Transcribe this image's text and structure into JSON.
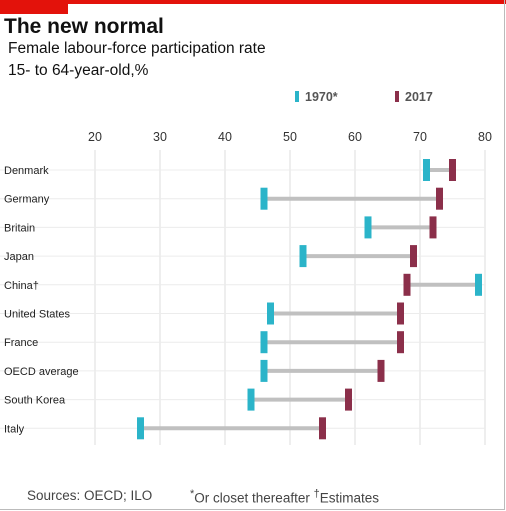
{
  "header": {
    "title": "The new normal",
    "subtitle": "Female labour-force participation rate",
    "subtitle2": "15- to 64-year-old,%"
  },
  "footer": {
    "source": "Sources: OECD; ILO",
    "note_star": "*",
    "note_star_text": "Or closet thereafter",
    "note_dagger": "†",
    "note_dagger_text": "Estimates"
  },
  "colors": {
    "accent": "#e3120b",
    "series_1970": "#2bb4c9",
    "series_2017": "#8b2f4a",
    "connector": "#c0c0c0",
    "grid": "#dddddd"
  },
  "chart_data": {
    "type": "dumbbell",
    "xlim": [
      20,
      80
    ],
    "xticks": [
      20,
      30,
      40,
      50,
      60,
      70,
      80
    ],
    "grid": true,
    "legend": [
      {
        "name": "1970*",
        "color": "#2bb4c9"
      },
      {
        "name": "2017",
        "color": "#8b2f4a"
      }
    ],
    "categories": [
      "Denmark",
      "Germany",
      "Britain",
      "Japan",
      "China†",
      "United States",
      "France",
      "OECD average",
      "South Korea",
      "Italy"
    ],
    "series": [
      {
        "name": "1970*",
        "values": [
          71,
          46,
          62,
          52,
          79,
          47,
          46,
          46,
          44,
          27
        ]
      },
      {
        "name": "2017",
        "values": [
          75,
          73,
          72,
          69,
          68,
          67,
          67,
          64,
          59,
          55
        ]
      }
    ]
  }
}
